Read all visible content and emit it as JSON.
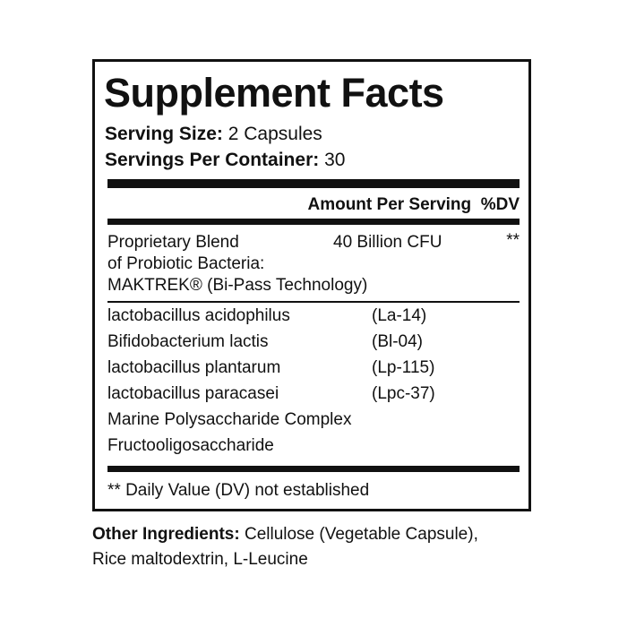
{
  "title": "Supplement Facts",
  "serving_size": {
    "label": "Serving Size:",
    "value": "2 Capsules"
  },
  "servings_per_container": {
    "label": "Servings Per Container:",
    "value": "30"
  },
  "header": {
    "amount": "Amount Per Serving",
    "dv": "%DV"
  },
  "blend": {
    "lines": [
      "Proprietary Blend",
      "of Probiotic Bacteria:",
      "MAKTREK® (Bi-Pass Technology)"
    ],
    "amount": "40 Billion CFU",
    "dv": "**"
  },
  "ingredients": [
    {
      "name": "lactobacillus acidophilus",
      "strain": "(La-14)"
    },
    {
      "name": "Bifidobacterium lactis",
      "strain": "(Bl-04)"
    },
    {
      "name": "lactobacillus plantarum",
      "strain": "(Lp-115)"
    },
    {
      "name": "lactobacillus paracasei",
      "strain": "(Lpc-37)"
    },
    {
      "name": "Marine Polysaccharide Complex",
      "strain": ""
    },
    {
      "name": "Fructooligosaccharide",
      "strain": ""
    }
  ],
  "footnote": "** Daily Value (DV) not established",
  "other_ingredients": {
    "label": "Other Ingredients:",
    "line1": "Cellulose (Vegetable Capsule),",
    "line2": "Rice maltodextrin, L-Leucine"
  }
}
